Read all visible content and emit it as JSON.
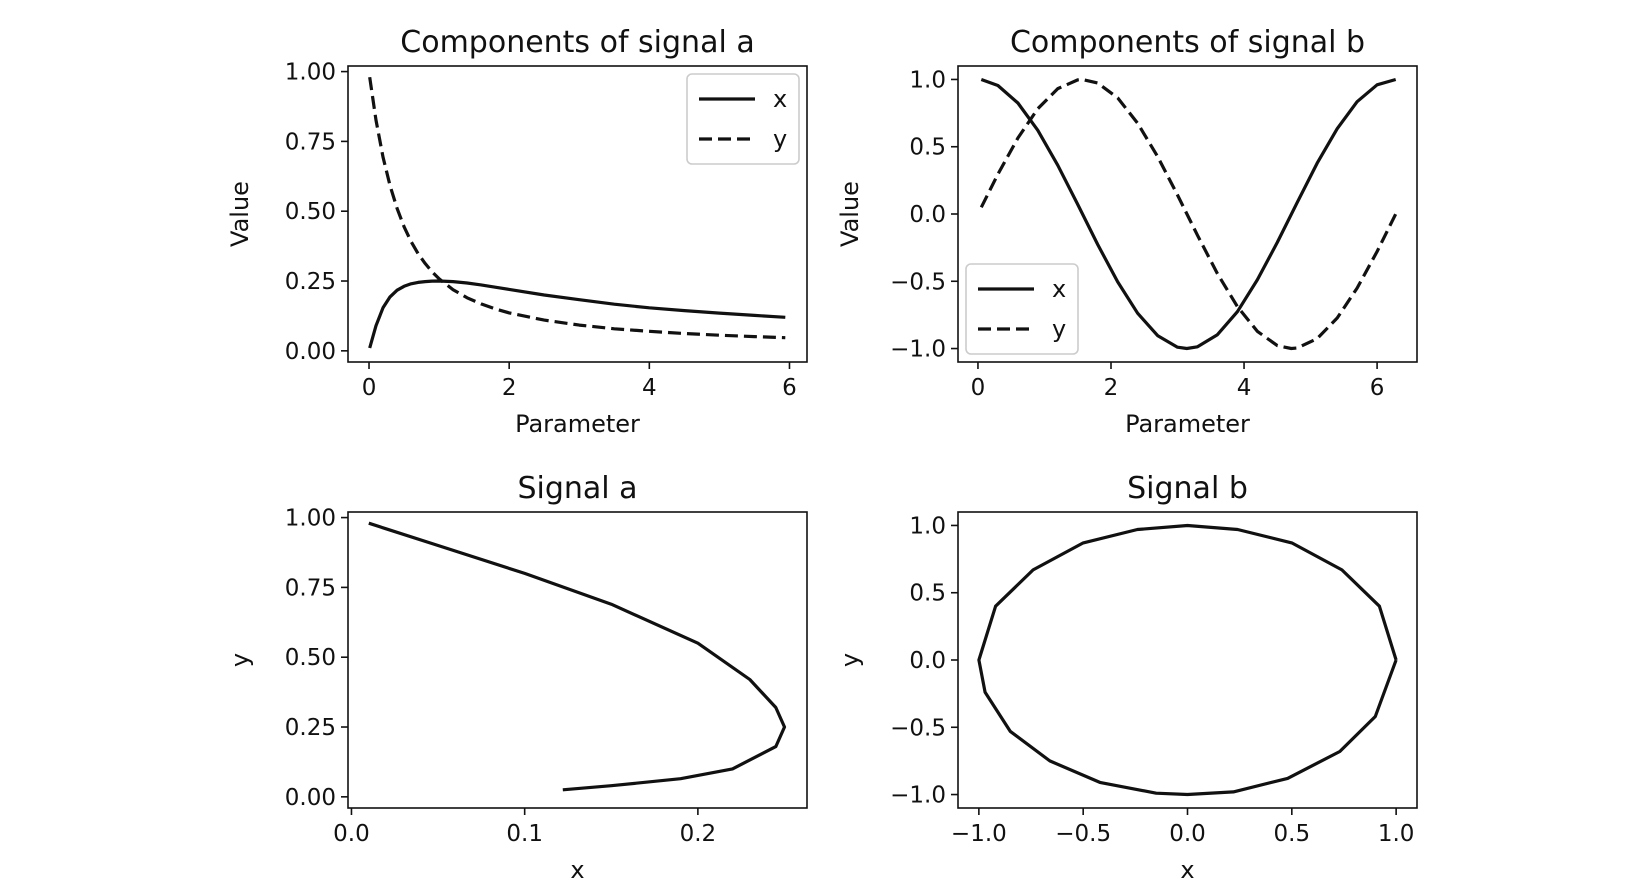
{
  "chart_data": [
    {
      "id": "components-a",
      "type": "line",
      "title": "Components of signal a",
      "xlabel": "Parameter",
      "ylabel": "Value",
      "xlim": [
        -0.3,
        6.25
      ],
      "ylim": [
        -0.04,
        1.02
      ],
      "xticks": [
        0,
        2,
        4,
        6
      ],
      "xtick_labels": [
        "0",
        "2",
        "4",
        "6"
      ],
      "yticks": [
        0,
        0.25,
        0.5,
        0.75,
        1
      ],
      "ytick_labels": [
        "0.00",
        "0.25",
        "0.50",
        "0.75",
        "1.00"
      ],
      "grid": false,
      "legend": {
        "placement": "upper right",
        "entries": [
          "x",
          "y"
        ]
      },
      "series": [
        {
          "name": "x",
          "style": "solid",
          "x": [
            0.01,
            0.1,
            0.2,
            0.3,
            0.4,
            0.5,
            0.6,
            0.7,
            0.8,
            0.9,
            1.0,
            1.2,
            1.4,
            1.6,
            1.8,
            2.0,
            2.5,
            3.0,
            3.5,
            4.0,
            4.5,
            5.0,
            5.5,
            5.94
          ],
          "y": [
            0.01,
            0.09,
            0.154,
            0.193,
            0.217,
            0.231,
            0.24,
            0.245,
            0.248,
            0.2497,
            0.25,
            0.248,
            0.243,
            0.236,
            0.228,
            0.22,
            0.2,
            0.183,
            0.167,
            0.154,
            0.144,
            0.135,
            0.127,
            0.12
          ]
        },
        {
          "name": "y",
          "style": "dashed",
          "x": [
            0.01,
            0.1,
            0.2,
            0.3,
            0.4,
            0.5,
            0.6,
            0.7,
            0.8,
            0.9,
            1.0,
            1.2,
            1.4,
            1.6,
            1.8,
            2.0,
            2.5,
            3.0,
            3.5,
            4.0,
            4.5,
            5.0,
            5.5,
            5.94
          ],
          "y": [
            0.98,
            0.826,
            0.694,
            0.592,
            0.51,
            0.444,
            0.391,
            0.348,
            0.313,
            0.283,
            0.258,
            0.219,
            0.19,
            0.168,
            0.15,
            0.136,
            0.11,
            0.092,
            0.079,
            0.07,
            0.062,
            0.056,
            0.051,
            0.047
          ]
        }
      ]
    },
    {
      "id": "components-b",
      "type": "line",
      "title": "Components of signal b",
      "xlabel": "Parameter",
      "ylabel": "Value",
      "xlim": [
        -0.3,
        6.6
      ],
      "ylim": [
        -1.1,
        1.1
      ],
      "xticks": [
        0,
        2,
        4,
        6
      ],
      "xtick_labels": [
        "0",
        "2",
        "4",
        "6"
      ],
      "yticks": [
        -1,
        -0.5,
        0,
        0.5,
        1
      ],
      "ytick_labels": [
        "−1.0",
        "−0.5",
        "0.0",
        "0.5",
        "1.0"
      ],
      "grid": false,
      "legend": {
        "placement": "lower left",
        "entries": [
          "x",
          "y"
        ]
      },
      "series": [
        {
          "name": "x",
          "style": "solid",
          "x": [
            0.05,
            0.3,
            0.6,
            0.9,
            1.2,
            1.5,
            1.8,
            2.1,
            2.4,
            2.7,
            3.0,
            3.14,
            3.3,
            3.6,
            3.9,
            4.2,
            4.5,
            4.8,
            5.1,
            5.4,
            5.7,
            6.0,
            6.28
          ],
          "y": [
            1.0,
            0.955,
            0.825,
            0.622,
            0.362,
            0.071,
            -0.227,
            -0.505,
            -0.737,
            -0.904,
            -0.99,
            -1.0,
            -0.987,
            -0.897,
            -0.726,
            -0.49,
            -0.211,
            0.087,
            0.378,
            0.634,
            0.835,
            0.96,
            1.0
          ]
        },
        {
          "name": "y",
          "style": "dashed",
          "x": [
            0.05,
            0.3,
            0.6,
            0.9,
            1.2,
            1.5,
            1.57,
            1.8,
            2.1,
            2.4,
            2.7,
            3.0,
            3.3,
            3.6,
            3.9,
            4.2,
            4.5,
            4.71,
            4.8,
            5.1,
            5.4,
            5.7,
            6.0,
            6.28
          ],
          "y": [
            0.05,
            0.296,
            0.565,
            0.783,
            0.932,
            0.997,
            1.0,
            0.974,
            0.863,
            0.675,
            0.427,
            0.141,
            -0.158,
            -0.443,
            -0.688,
            -0.872,
            -0.978,
            -1.0,
            -0.996,
            -0.926,
            -0.773,
            -0.551,
            -0.279,
            0.0
          ]
        }
      ]
    },
    {
      "id": "signal-a",
      "type": "line",
      "title": "Signal a",
      "xlabel": "x",
      "ylabel": "y",
      "xlim": [
        -0.002,
        0.263
      ],
      "ylim": [
        -0.04,
        1.02
      ],
      "xticks": [
        0,
        0.1,
        0.2
      ],
      "xtick_labels": [
        "0.0",
        "0.1",
        "0.2"
      ],
      "yticks": [
        0,
        0.25,
        0.5,
        0.75,
        1
      ],
      "ytick_labels": [
        "0.00",
        "0.25",
        "0.50",
        "0.75",
        "1.00"
      ],
      "grid": false,
      "series": [
        {
          "style": "solid",
          "x": [
            0.01,
            0.02,
            0.05,
            0.1,
            0.15,
            0.2,
            0.23,
            0.245,
            0.25,
            0.245,
            0.22,
            0.19,
            0.15,
            0.122
          ],
          "y": [
            0.98,
            0.96,
            0.9,
            0.8,
            0.69,
            0.55,
            0.42,
            0.32,
            0.25,
            0.18,
            0.1,
            0.065,
            0.04,
            0.025
          ]
        }
      ]
    },
    {
      "id": "signal-b",
      "type": "line",
      "title": "Signal b",
      "xlabel": "x",
      "ylabel": "y",
      "xlim": [
        -1.1,
        1.1
      ],
      "ylim": [
        -1.1,
        1.1
      ],
      "xticks": [
        -1,
        -0.5,
        0,
        0.5,
        1
      ],
      "xtick_labels": [
        "−1.0",
        "−0.5",
        "0.0",
        "0.5",
        "1.0"
      ],
      "yticks": [
        -1,
        -0.5,
        0,
        0.5,
        1
      ],
      "ytick_labels": [
        "−1.0",
        "−0.5",
        "0.0",
        "0.5",
        "1.0"
      ],
      "grid": false,
      "series": [
        {
          "style": "solid",
          "x": [
            1.0,
            0.92,
            0.74,
            0.5,
            0.24,
            0.0,
            -0.24,
            -0.5,
            -0.74,
            -0.92,
            -1.0,
            -0.97,
            -0.85,
            -0.66,
            -0.42,
            -0.15,
            0.0,
            0.22,
            0.48,
            0.73,
            0.9,
            1.0
          ],
          "y": [
            0.0,
            0.4,
            0.67,
            0.87,
            0.97,
            1.0,
            0.97,
            0.87,
            0.67,
            0.4,
            0.0,
            -0.24,
            -0.53,
            -0.75,
            -0.91,
            -0.99,
            -1.0,
            -0.98,
            -0.88,
            -0.68,
            -0.42,
            0.0
          ]
        }
      ]
    }
  ]
}
